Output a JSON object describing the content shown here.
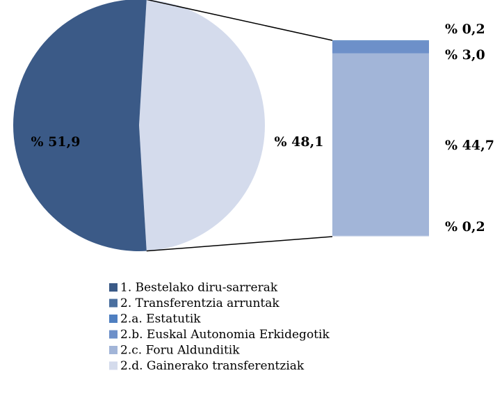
{
  "chart_data": {
    "type": "pie",
    "series": [
      {
        "name": "1. Bestelako diru-sarrerak",
        "color": "#3b5a87",
        "values": [
          51.9
        ],
        "value_labels": [
          "% 51,9"
        ]
      },
      {
        "name": "2. Transferentzia arruntak",
        "color": "#4a6f9f",
        "values": [
          48.1
        ],
        "value_labels": [
          "% 48,1"
        ]
      },
      {
        "name": "2.a. Estatutik",
        "color": "#4f7fc0",
        "values": [
          0.2
        ],
        "value_labels": [
          "% 0,2"
        ]
      },
      {
        "name": "2.b. Euskal Autonomia Erkidegotik",
        "color": "#6d90c9",
        "values": [
          3.0
        ],
        "value_labels": [
          "% 3,0"
        ]
      },
      {
        "name": "2.c. Foru Aldunditik",
        "color": "#a2b5d8",
        "values": [
          44.7
        ],
        "value_labels": [
          "% 44,7"
        ]
      },
      {
        "name": "2.d. Gainerako transferentziak",
        "color": "#d4dbec",
        "values": [
          0.2
        ],
        "value_labels": [
          "% 0,2"
        ]
      }
    ],
    "pie_colors": [
      "#3b5a87",
      "#d4dbec"
    ]
  }
}
